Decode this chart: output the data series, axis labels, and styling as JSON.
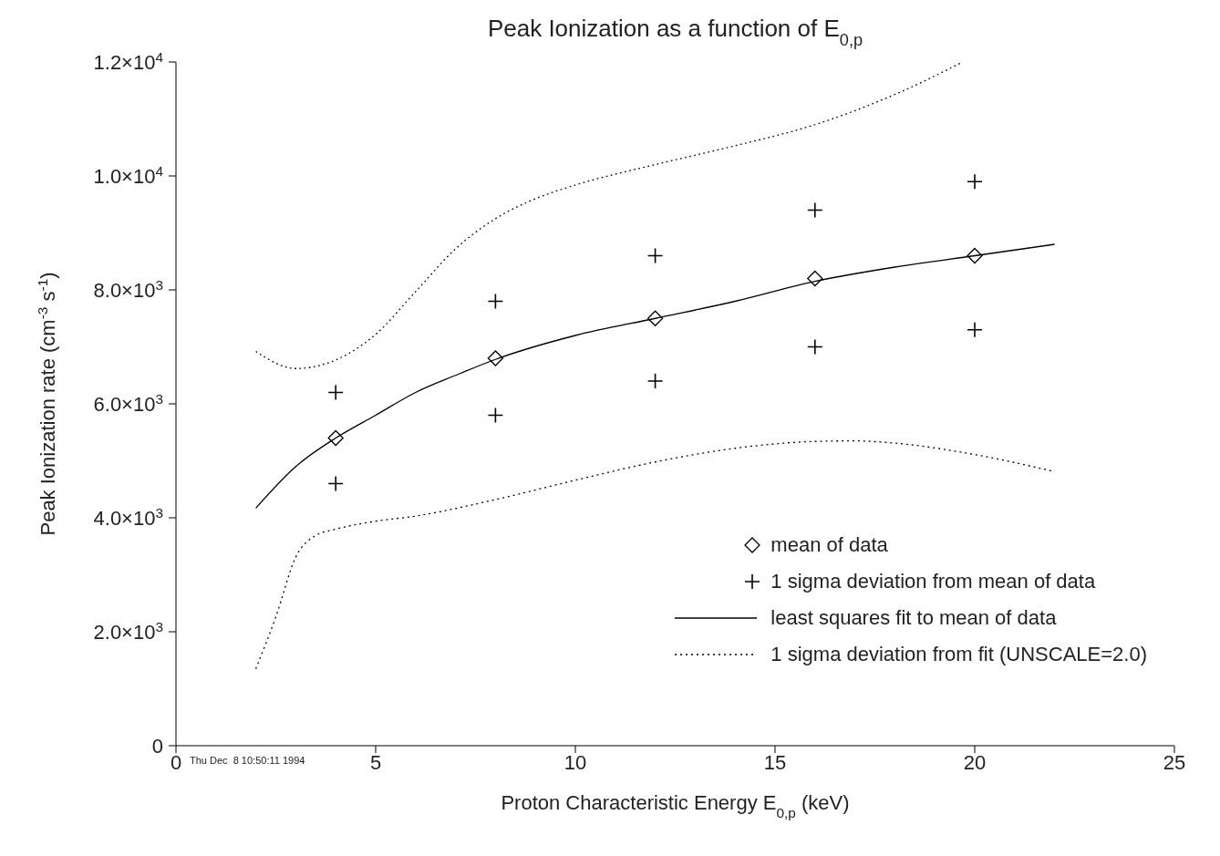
{
  "chart_data": {
    "type": "scatter",
    "title": "Peak Ionization as a function of E$_{0,p}$",
    "xlabel": "Proton Characteristic Energy E$_{0,p}$ (keV)",
    "ylabel": "Peak Ionization rate (cm$^{-3}$ s$^{-1}$)",
    "xlim": [
      0,
      25
    ],
    "xticks": [
      0,
      5,
      10,
      15,
      20,
      25
    ],
    "ylim": [
      0,
      12000
    ],
    "yticks": [
      0,
      {
        "value": 2000,
        "label": "2.0×10$^{3}$"
      },
      {
        "value": 4000,
        "label": "4.0×10$^{3}$"
      },
      {
        "value": 6000,
        "label": "6.0×10$^{3}$"
      },
      {
        "value": 8000,
        "label": "8.0×10$^{3}$"
      },
      {
        "value": 10000,
        "label": "1.0×10$^{4}$"
      },
      {
        "value": 12000,
        "label": "1.2×10$^{4}$"
      }
    ],
    "legend": "bottom right",
    "series": [
      {
        "name": "mean of data",
        "marker": "diamond",
        "color": "#000000",
        "x": [
          4,
          8,
          12,
          16,
          20
        ],
        "values": [
          5400,
          6800,
          7500,
          8200,
          8600
        ]
      },
      {
        "name": "1 sigma deviation from mean of data",
        "marker": "cross",
        "color": "#000000",
        "x": [
          4,
          4,
          8,
          8,
          12,
          12,
          16,
          16,
          20,
          20
        ],
        "values": [
          6200,
          4600,
          7800,
          5800,
          8600,
          6400,
          9400,
          7000,
          9900,
          7300
        ]
      },
      {
        "name": "least squares fit to mean of data",
        "type": "line",
        "line_style": "solid",
        "color": "#000000",
        "x": [
          2,
          3,
          4,
          5,
          6,
          7,
          8,
          10,
          12,
          14,
          16,
          18,
          20,
          22
        ],
        "values": [
          4170,
          4900,
          5400,
          5800,
          6200,
          6500,
          6780,
          7200,
          7500,
          7800,
          8150,
          8400,
          8600,
          8800
        ]
      },
      {
        "name": "1 sigma deviation from fit (UNSCALE=2.0)",
        "type": "line",
        "line_style": "dotted",
        "color": "#000000",
        "x": [
          2,
          3,
          4,
          5,
          6,
          7,
          8,
          9,
          10,
          12,
          14,
          16,
          18,
          19.7
        ],
        "values": [
          6920,
          6620,
          6770,
          7220,
          7970,
          8720,
          9250,
          9600,
          9840,
          10200,
          10530,
          10900,
          11430,
          12000
        ]
      },
      {
        "type": "line",
        "line_style": "dotted",
        "color": "#000000",
        "x": [
          2,
          2.5,
          3,
          3.5,
          4,
          5,
          6,
          8,
          10,
          12,
          14,
          16,
          17,
          18,
          20,
          22
        ],
        "values": [
          1350,
          2260,
          3310,
          3690,
          3800,
          3940,
          4030,
          4320,
          4660,
          4980,
          5220,
          5340,
          5350,
          5310,
          5110,
          4810
        ]
      }
    ],
    "annotations": [
      "Thu Dec  8 10:50:11 1994"
    ]
  }
}
